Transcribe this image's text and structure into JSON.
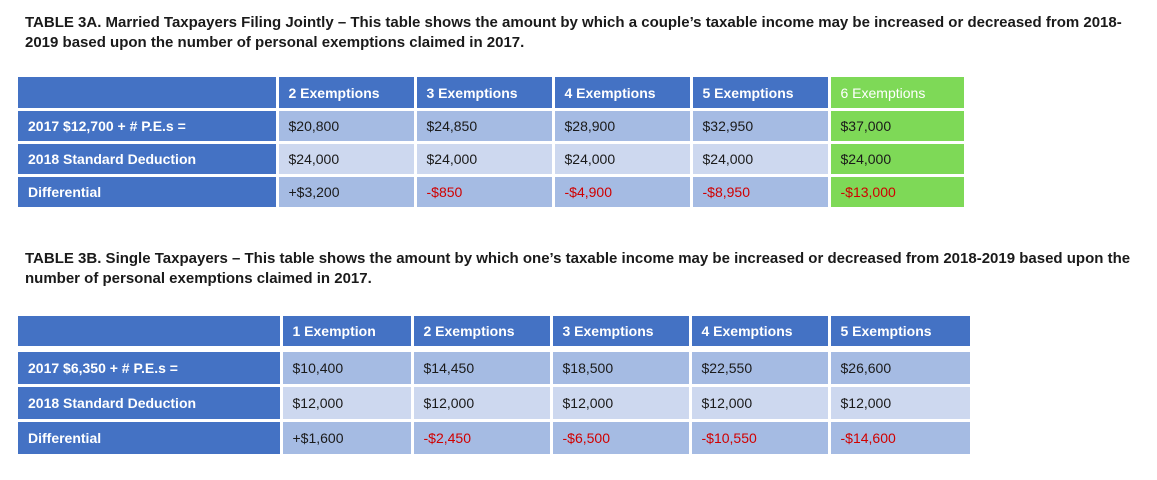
{
  "table_a": {
    "caption": "TABLE 3A. Married Taxpayers Filing Jointly – This table shows the amount by which a couple’s taxable income may be increased or decreased from 2018-2019  based upon the number of personal exemptions claimed in 2017.",
    "headers": [
      "2 Exemptions",
      "3 Exemptions",
      "4 Exemptions",
      "5 Exemptions",
      "6 Exemptions"
    ],
    "rows": [
      {
        "label": "2017 $12,700 + # P.E.s =",
        "values": [
          "$20,800",
          "$24,850",
          "$28,900",
          "$32,950",
          "$37,000"
        ]
      },
      {
        "label": "2018 Standard Deduction",
        "values": [
          "$24,000",
          "$24,000",
          "$24,000",
          "$24,000",
          "$24,000"
        ]
      },
      {
        "label": "Differential",
        "values": [
          "+$3,200",
          "-$850",
          "-$4,900",
          "-$8,950",
          "-$13,000"
        ]
      }
    ],
    "highlight_color": "#7ed957"
  },
  "table_b": {
    "caption": "TABLE 3B. Single Taxpayers – This table shows the amount by which one’s taxable income may be increased or decreased  from 2018-2019 based upon the number of personal exemptions claimed in 2017.",
    "headers": [
      "1 Exemption",
      "2 Exemptions",
      "3 Exemptions",
      "4 Exemptions",
      "5 Exemptions"
    ],
    "rows": [
      {
        "label": "2017 $6,350 + # P.E.s =",
        "values": [
          "$10,400",
          "$14,450",
          "$18,500",
          "$22,550",
          "$26,600"
        ]
      },
      {
        "label": "2018 Standard Deduction",
        "values": [
          "$12,000",
          "$12,000",
          "$12,000",
          "$12,000",
          "$12,000"
        ]
      },
      {
        "label": "Differential",
        "values": [
          "+$1,600",
          "-$2,450",
          "-$6,500",
          "-$10,550",
          "-$14,600"
        ]
      }
    ]
  },
  "colors": {
    "header_blue": "#4472c4",
    "row_light": "#a5bbe3",
    "row_lighter": "#cdd8ef",
    "negative_red": "#d00000"
  }
}
